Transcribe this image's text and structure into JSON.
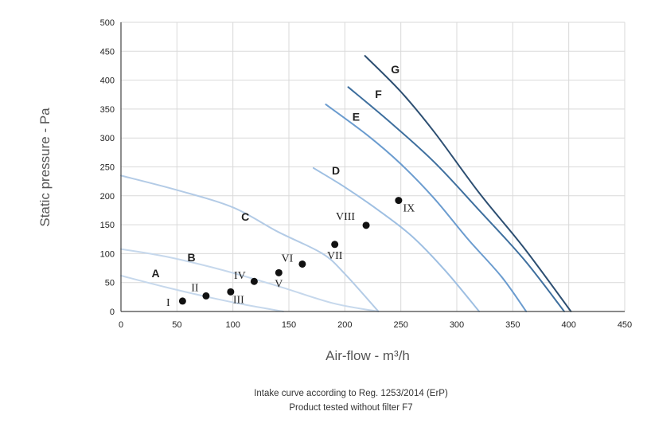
{
  "chart_data": {
    "type": "line",
    "xlabel": "Air-flow - m³/h",
    "ylabel": "Static pressure - Pa",
    "xlim": [
      0,
      450
    ],
    "ylim": [
      0,
      500
    ],
    "xticks": [
      0,
      50,
      100,
      150,
      200,
      250,
      300,
      350,
      400,
      450
    ],
    "yticks": [
      0,
      50,
      100,
      150,
      200,
      250,
      300,
      350,
      400,
      450,
      500
    ],
    "grid": true,
    "series": [
      {
        "name": "A",
        "color": "#c6d8ec",
        "points": [
          [
            0,
            62
          ],
          [
            40,
            42
          ],
          [
            80,
            24
          ],
          [
            110,
            12
          ],
          [
            145,
            0
          ]
        ],
        "label_at": [
          31,
          59
        ]
      },
      {
        "name": "B",
        "color": "#c6d8ec",
        "points": [
          [
            0,
            108
          ],
          [
            40,
            95
          ],
          [
            90,
            72
          ],
          [
            140,
            44
          ],
          [
            190,
            14
          ],
          [
            230,
            0
          ]
        ],
        "label_at": [
          63,
          87
        ]
      },
      {
        "name": "C",
        "color": "#b3cbe6",
        "points": [
          [
            0,
            235
          ],
          [
            50,
            210
          ],
          [
            100,
            180
          ],
          [
            140,
            138
          ],
          [
            180,
            100
          ],
          [
            200,
            65
          ],
          [
            230,
            0
          ]
        ],
        "label_at": [
          111,
          157
        ]
      },
      {
        "name": "D",
        "color": "#9ebfe2",
        "points": [
          [
            172,
            248
          ],
          [
            200,
            215
          ],
          [
            230,
            175
          ],
          [
            260,
            130
          ],
          [
            290,
            70
          ],
          [
            320,
            0
          ]
        ],
        "label_at": [
          192,
          237
        ]
      },
      {
        "name": "E",
        "color": "#6b9ccf",
        "points": [
          [
            183,
            358
          ],
          [
            220,
            305
          ],
          [
            250,
            255
          ],
          [
            280,
            195
          ],
          [
            310,
            125
          ],
          [
            340,
            60
          ],
          [
            362,
            0
          ]
        ],
        "label_at": [
          210,
          330
        ]
      },
      {
        "name": "F",
        "color": "#3e6f9e",
        "points": [
          [
            203,
            388
          ],
          [
            240,
            328
          ],
          [
            280,
            258
          ],
          [
            320,
            175
          ],
          [
            360,
            90
          ],
          [
            396,
            0
          ]
        ],
        "label_at": [
          230,
          369
        ]
      },
      {
        "name": "G",
        "color": "#2d4f72",
        "points": [
          [
            218,
            442
          ],
          [
            250,
            380
          ],
          [
            280,
            310
          ],
          [
            320,
            205
          ],
          [
            360,
            110
          ],
          [
            402,
            0
          ]
        ],
        "label_at": [
          245,
          412
        ]
      }
    ],
    "points": [
      {
        "label": "I",
        "x": 55,
        "y": 18
      },
      {
        "label": "II",
        "x": 76,
        "y": 27
      },
      {
        "label": "III",
        "x": 98,
        "y": 34
      },
      {
        "label": "IV",
        "x": 119,
        "y": 52
      },
      {
        "label": "V",
        "x": 141,
        "y": 67
      },
      {
        "label": "VI",
        "x": 162,
        "y": 82
      },
      {
        "label": "VII",
        "x": 191,
        "y": 116
      },
      {
        "label": "VIII",
        "x": 219,
        "y": 149
      },
      {
        "label": "IX",
        "x": 248,
        "y": 192
      }
    ]
  },
  "caption": {
    "line1": "Intake curve according to Reg. 1253/2014 (ErP)",
    "line2": "Product tested without filter F7"
  }
}
